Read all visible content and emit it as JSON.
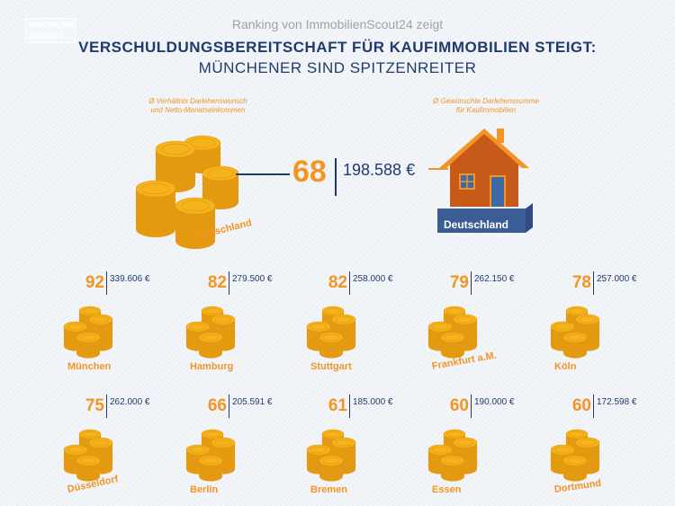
{
  "logo": {
    "line1": "IMMOBILIEN",
    "line2": "SCOUT24"
  },
  "header": {
    "subtitle": "Ranking von ImmobilienScout24 zeigt",
    "title_line1": "VERSCHULDUNGSBEREITSCHAFT FÜR KAUFIMMOBILIEN STEIGT:",
    "title_line2": "MÜNCHENER SIND SPITZENREITER"
  },
  "legend": {
    "ratio_note_line1": "Ø Verhältnis Darlehenswunsch",
    "ratio_note_line2": "und Netto-Monatseinkommen",
    "amount_note_line1": "Ø Gewünschte Darlehenssumme",
    "amount_note_line2": "für Kaufimmobilien"
  },
  "national": {
    "name": "Deutschland",
    "ratio": "68",
    "amount": "198.588 €"
  },
  "colors": {
    "coin": "#f5b31c",
    "coin_dark": "#e39a10",
    "accent_orange": "#f39425",
    "navy": "#1f3b6e",
    "house_wall": "#c75a1a",
    "house_window": "#3b6aa6",
    "house_base": "#3a5d96"
  },
  "cities": [
    {
      "name": "München",
      "ratio": "92",
      "amount": "339.606  €"
    },
    {
      "name": "Hamburg",
      "ratio": "82",
      "amount": "279.500  €"
    },
    {
      "name": "Stuttgart",
      "ratio": "82",
      "amount": "258.000 €"
    },
    {
      "name": "Frankfurt a.M.",
      "ratio": "79",
      "amount": "262.150 €"
    },
    {
      "name": "Köln",
      "ratio": "78",
      "amount": "257.000 €"
    },
    {
      "name": "Düsseldorf",
      "ratio": "75",
      "amount": "262.000 €"
    },
    {
      "name": "Berlin",
      "ratio": "66",
      "amount": "205.591 €"
    },
    {
      "name": "Bremen",
      "ratio": "61",
      "amount": "185.000 €"
    },
    {
      "name": "Essen",
      "ratio": "60",
      "amount": "190.000 €"
    },
    {
      "name": "Dortmund",
      "ratio": "60",
      "amount": "172.598 €"
    }
  ]
}
